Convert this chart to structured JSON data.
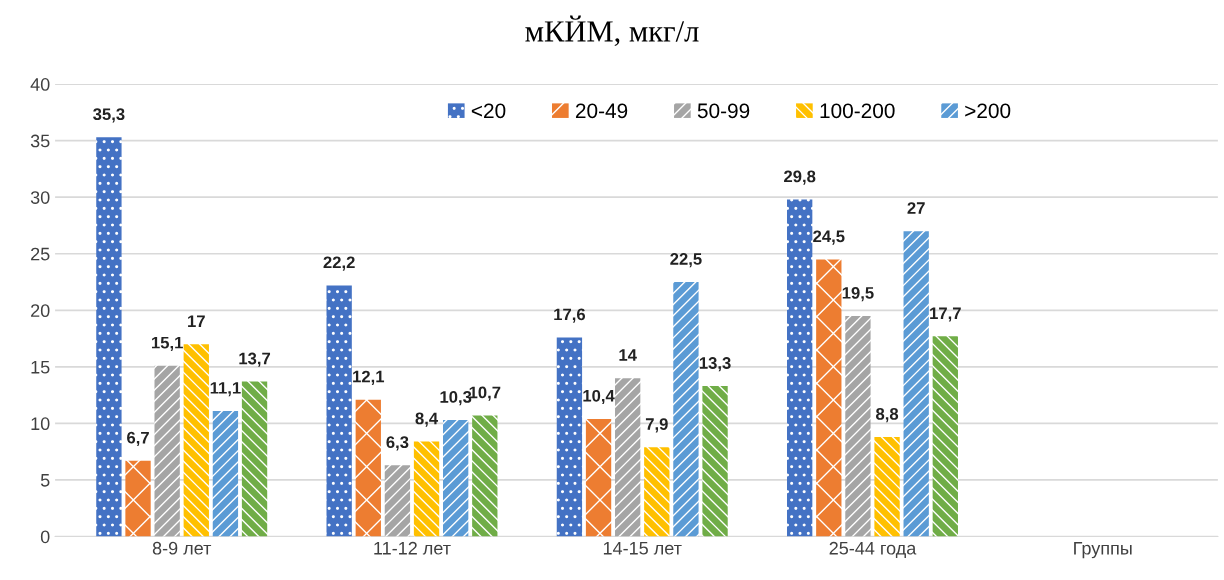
{
  "chart_data": {
    "type": "bar",
    "title": "мКЙМ, мкг/л",
    "categories": [
      "8-9 лет",
      "11-12 лет",
      "14-15 лет",
      "25-44 года",
      "Группы"
    ],
    "series": [
      {
        "name": "<20",
        "color": "#4472c4",
        "values": [
          35.3,
          22.2,
          17.6,
          29.8,
          null
        ],
        "value_labels": [
          "35,3",
          "22,2",
          "17,6",
          "29,8",
          null
        ]
      },
      {
        "name": "20-49",
        "color": "#ed7d31",
        "values": [
          6.7,
          12.1,
          10.4,
          24.5,
          null
        ],
        "value_labels": [
          "6,7",
          "12,1",
          "10,4",
          "24,5",
          null
        ]
      },
      {
        "name": "50-99",
        "color": "#a5a5a5",
        "values": [
          15.1,
          6.3,
          14,
          19.5,
          null
        ],
        "value_labels": [
          "15,1",
          "6,3",
          "14",
          "19,5",
          null
        ]
      },
      {
        "name": "100-200",
        "color": "#ffc000",
        "values": [
          17,
          8.4,
          7.9,
          8.8,
          null
        ],
        "value_labels": [
          "17",
          "8,4",
          "7,9",
          "8,8",
          null
        ]
      },
      {
        "name": ">200",
        "color": "#5b9bd5",
        "values": [
          11.1,
          10.3,
          22.5,
          27,
          null
        ],
        "value_labels": [
          "11,1",
          "10,3",
          "22,5",
          "27",
          null
        ]
      },
      {
        "color": "#70ad47",
        "values": [
          13.7,
          10.7,
          13.3,
          17.7,
          null
        ],
        "value_labels": [
          "13,7",
          "10,7",
          "13,3",
          "17,7",
          null
        ]
      }
    ],
    "ylim": [
      0,
      40
    ],
    "yticks": [
      0,
      5,
      10,
      15,
      20,
      25,
      30,
      35,
      40
    ],
    "grid": "y",
    "legend": "top"
  }
}
